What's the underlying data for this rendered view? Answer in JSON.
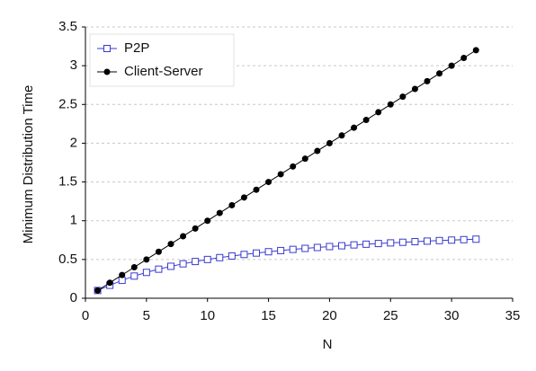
{
  "chart_data": {
    "type": "line",
    "x_label": "N",
    "y_label": "Minimum Distribution Time",
    "x": [
      1,
      2,
      3,
      4,
      5,
      6,
      7,
      8,
      9,
      10,
      11,
      12,
      13,
      14,
      15,
      16,
      17,
      18,
      19,
      20,
      21,
      22,
      23,
      24,
      25,
      26,
      27,
      28,
      29,
      30,
      31,
      32
    ],
    "series": [
      {
        "name": "P2P",
        "color": "#3a3ad0",
        "marker": "square",
        "values": [
          0.1,
          0.167,
          0.231,
          0.286,
          0.333,
          0.375,
          0.412,
          0.444,
          0.474,
          0.5,
          0.524,
          0.545,
          0.565,
          0.583,
          0.6,
          0.615,
          0.63,
          0.643,
          0.655,
          0.667,
          0.677,
          0.688,
          0.697,
          0.706,
          0.714,
          0.722,
          0.73,
          0.737,
          0.744,
          0.75,
          0.756,
          0.762
        ]
      },
      {
        "name": "Client-Server",
        "color": "#000000",
        "marker": "circle",
        "values": [
          0.1,
          0.2,
          0.3,
          0.4,
          0.5,
          0.6,
          0.7,
          0.8,
          0.9,
          1.0,
          1.1,
          1.2,
          1.3,
          1.4,
          1.5,
          1.6,
          1.7,
          1.8,
          1.9,
          2.0,
          2.1,
          2.2,
          2.3,
          2.4,
          2.5,
          2.6,
          2.7,
          2.8,
          2.9,
          3.0,
          3.1,
          3.2
        ]
      }
    ],
    "xlim": [
      0,
      35
    ],
    "xticks": [
      0,
      5,
      10,
      15,
      20,
      25,
      30,
      35
    ],
    "ylim": [
      0,
      3.5
    ],
    "yticks": [
      0,
      0.5,
      1,
      1.5,
      2,
      2.5,
      3,
      3.5
    ],
    "grid": true,
    "legend_position": "upper-left"
  }
}
